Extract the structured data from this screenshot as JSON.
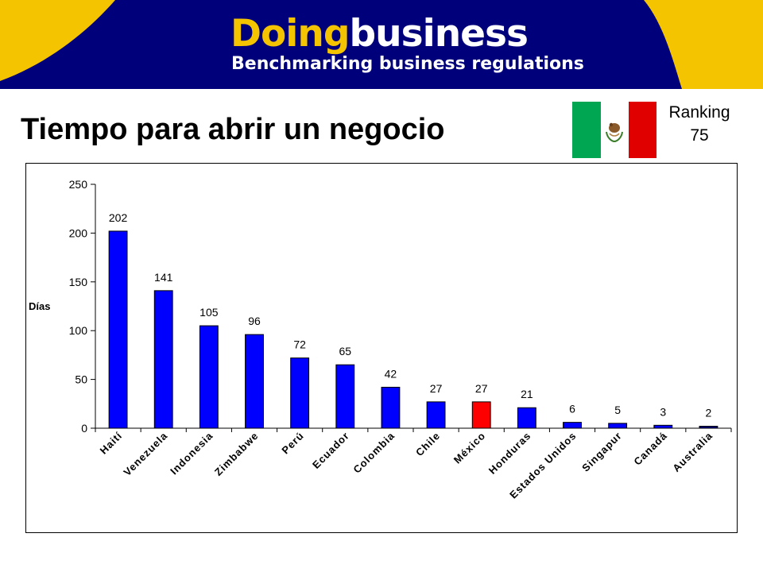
{
  "header": {
    "logo_part1": "Doing",
    "logo_part2": "business",
    "tagline": "Benchmarking business regulations"
  },
  "slide": {
    "title": "Tiempo para abrir un negocio",
    "ranking_label": "Ranking",
    "ranking_value": "75",
    "flag_icon": "mexico-flag-icon"
  },
  "colors": {
    "banner_yellow": "#f5c400",
    "banner_blue": "#00007a",
    "bar_default": "#0000ff",
    "bar_highlight": "#ff0000",
    "bar_last": "#000080"
  },
  "chart_data": {
    "type": "bar",
    "title": "",
    "xlabel": "",
    "ylabel": "Días",
    "ylim": [
      0,
      250
    ],
    "yticks": [
      0,
      50,
      100,
      150,
      200,
      250
    ],
    "grid": false,
    "categories": [
      "Haití",
      "Venezuela",
      "Indonesia",
      "Zimbabwe",
      "Perú",
      "Ecuador",
      "Colombia",
      "Chile",
      "México",
      "Honduras",
      "Estados Unidos",
      "Singapur",
      "Canadá",
      "Australia"
    ],
    "values": [
      202,
      141,
      105,
      96,
      72,
      65,
      42,
      27,
      27,
      21,
      6,
      5,
      3,
      2
    ],
    "highlight": "México"
  }
}
